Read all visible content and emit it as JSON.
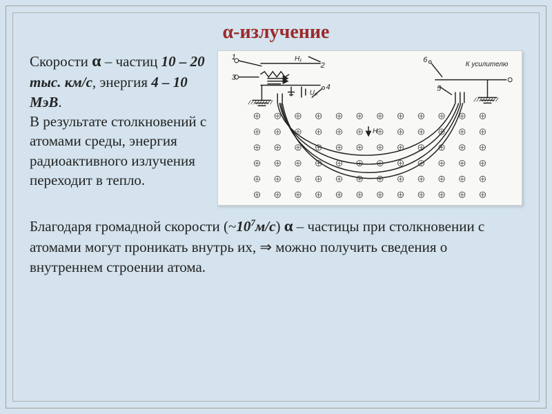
{
  "title": "α-излучение",
  "para1": {
    "pre": "Скорости ",
    "alpha": "α",
    "mid": " – частиц ",
    "speed": "10 – 20 тыс. км/с",
    "mid2": ", энергия ",
    "energy": "4 – 10 МэВ",
    "period": ".",
    "rest": " В результате столкновений с атомами среды, энергия радиоактивного излучения переходит в тепло."
  },
  "para2": {
    "pre": "Благодаря громадной скорости (~",
    "speed": "10",
    "speed_exp": "7",
    "speed_unit": "м/с",
    "mid": ") ",
    "alpha": "α",
    "post": " – частицы при столкновении с атомами могут проникать внутрь их, ",
    "arrow": "⇒",
    "rest": " можно получить сведения о внутреннем строении атома."
  },
  "diagram": {
    "labels": {
      "n1": "1",
      "n2": "2",
      "n3": "3",
      "n4": "4",
      "n5": "5",
      "n6": "6",
      "H1": "H₁",
      "U0": "U₀",
      "H": "H",
      "amp": "К усилителю"
    },
    "field_rows": [
      95,
      118,
      141,
      164,
      187,
      210
    ],
    "field_cols": [
      55,
      85,
      115,
      145,
      175,
      205,
      235,
      265,
      295,
      325,
      355,
      385
    ],
    "curves": [
      "M 85 76 C 100 165, 300 190, 345 76",
      "M 88 76 C 110 185, 305 205, 350 76",
      "M 90 76 C 115 205, 310 218, 353 76",
      "M 92 76 C 120 218, 315 228, 356 76"
    ],
    "colors": {
      "bg": "#f8f8f6",
      "line": "#222"
    }
  }
}
